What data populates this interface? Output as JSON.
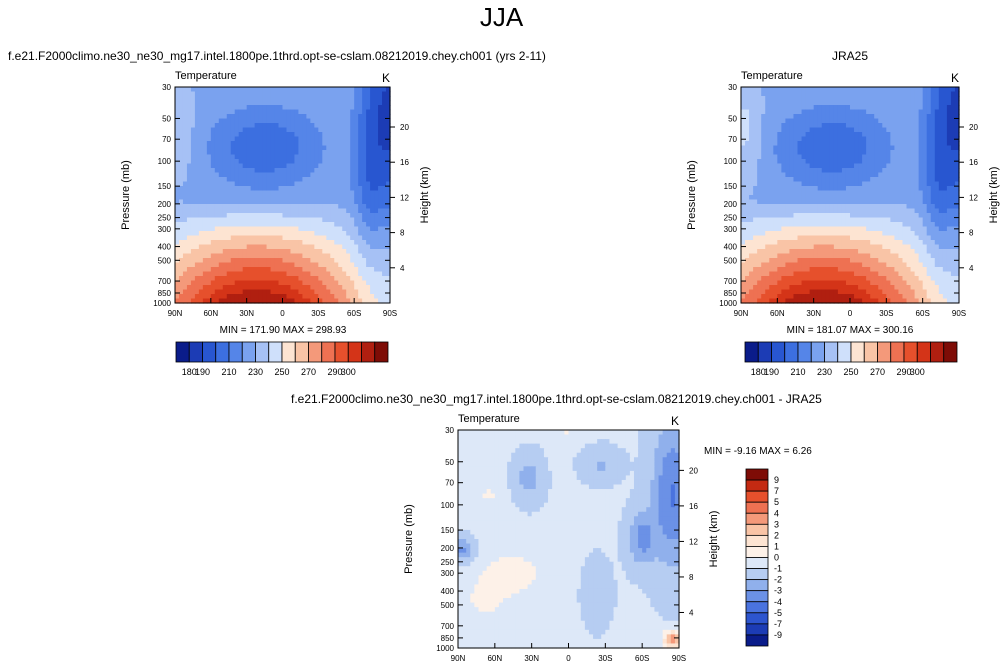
{
  "figure": {
    "season": "JJA",
    "model_title": "f.e21.F2000climo.ne30_ne30_mg17.intel.1800pe.1thrd.opt-se-cslam.08212019.chey.ch001 (yrs 2-11)",
    "obs_title": "JRA25",
    "diff_title": "f.e21.F2000climo.ne30_ne30_mg17.intel.1800pe.1thrd.opt-se-cslam.08212019.chey.ch001 - JRA25"
  },
  "chart_data": [
    {
      "type": "heatmap",
      "variable": "Temperature",
      "units": "K",
      "ylabel": "Pressure (mb)",
      "ylabel_right": "Height (km)",
      "x_ticks": [
        "90N",
        "60N",
        "30N",
        "0",
        "30S",
        "60S",
        "90S"
      ],
      "y_ticks": [
        "30",
        "50",
        "70",
        "100",
        "150",
        "200",
        "250",
        "300",
        "400",
        "500",
        "700",
        "850",
        "1000"
      ],
      "height_ticks": [
        "20",
        "16",
        "12",
        "8",
        "4"
      ],
      "stats": "MIN = 171.90  MAX = 298.93",
      "min": 171.9,
      "max": 298.93,
      "colorbar_labels": [
        "180",
        "190",
        "210",
        "230",
        "250",
        "270",
        "290",
        "300"
      ]
    },
    {
      "type": "heatmap",
      "variable": "Temperature",
      "units": "K",
      "ylabel": "Pressure (mb)",
      "ylabel_right": "Height (km)",
      "x_ticks": [
        "90N",
        "60N",
        "30N",
        "0",
        "30S",
        "60S",
        "90S"
      ],
      "y_ticks": [
        "30",
        "50",
        "70",
        "100",
        "150",
        "200",
        "250",
        "300",
        "400",
        "500",
        "700",
        "850",
        "1000"
      ],
      "height_ticks": [
        "20",
        "16",
        "12",
        "8",
        "4"
      ],
      "stats": "MIN = 181.07  MAX = 300.16",
      "min": 181.07,
      "max": 300.16,
      "colorbar_labels": [
        "180",
        "190",
        "210",
        "230",
        "250",
        "270",
        "290",
        "300"
      ]
    },
    {
      "type": "heatmap",
      "variable": "Temperature",
      "units": "K",
      "ylabel": "Pressure (mb)",
      "ylabel_right": "Height (km)",
      "x_ticks": [
        "90N",
        "60N",
        "30N",
        "0",
        "30S",
        "60S",
        "90S"
      ],
      "y_ticks": [
        "30",
        "50",
        "70",
        "100",
        "150",
        "200",
        "250",
        "300",
        "400",
        "500",
        "700",
        "850",
        "1000"
      ],
      "height_ticks": [
        "20",
        "16",
        "12",
        "8",
        "4"
      ],
      "stats": "MIN = -9.16  MAX =  6.26",
      "min": -9.16,
      "max": 6.26,
      "colorbar_labels": [
        "9",
        "7",
        "5",
        "4",
        "3",
        "2",
        "1",
        "0",
        "-1",
        "-2",
        "-3",
        "-4",
        "-5",
        "-7",
        "-9"
      ]
    }
  ],
  "colors": {
    "temp_scale": [
      "#0a1c8a",
      "#1c3cb5",
      "#2856d0",
      "#3c6fe0",
      "#5585e8",
      "#7aa2ef",
      "#a6c1f5",
      "#cfe0fb",
      "#fde4d2",
      "#f9c4a6",
      "#f4997a",
      "#ee7152",
      "#e6502c",
      "#d43418",
      "#b01f10",
      "#7e0c06"
    ],
    "diff_scale": [
      "#7e0c06",
      "#c42a12",
      "#e6502c",
      "#ee7152",
      "#f4997a",
      "#f9c4a6",
      "#fde4d2",
      "#fdf1e8",
      "#dde8f8",
      "#b6cdf2",
      "#90b0ec",
      "#6b91e6",
      "#4a73df",
      "#2d55cf",
      "#1c3cb5",
      "#0a1c8a"
    ]
  }
}
